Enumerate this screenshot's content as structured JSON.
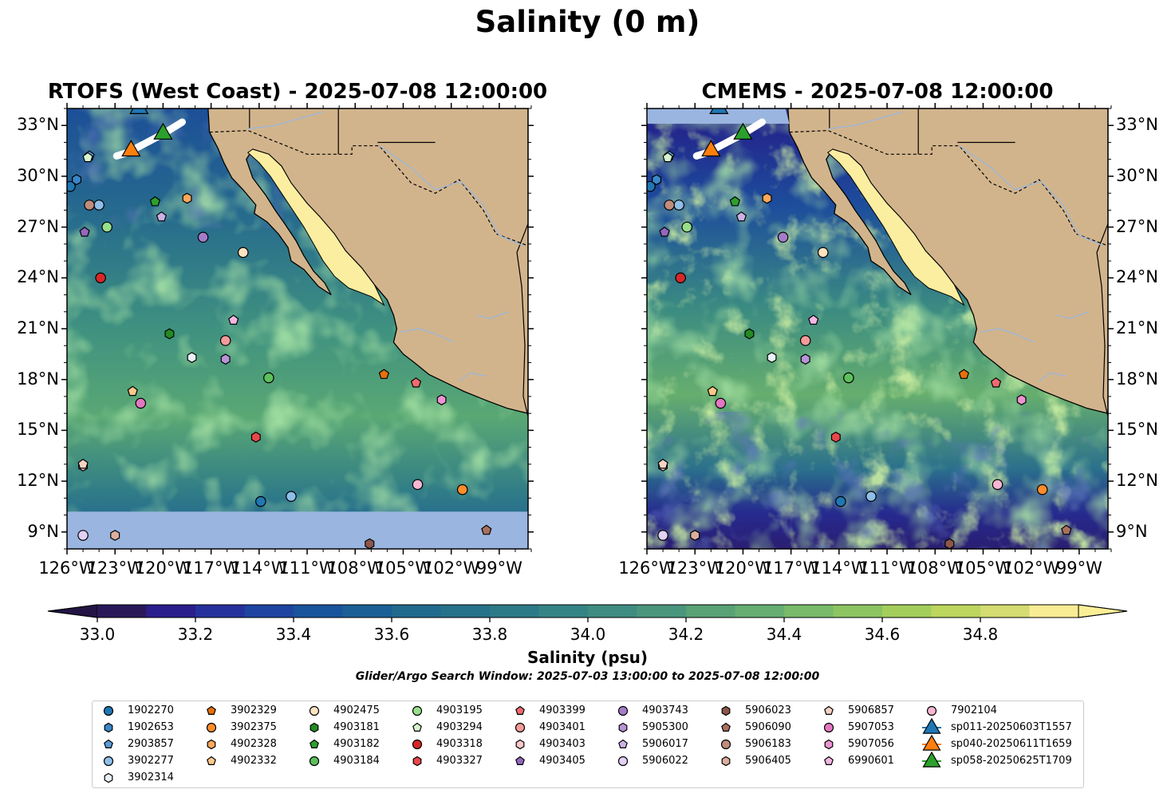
{
  "figure": {
    "title": "Salinity (0 m)"
  },
  "panels": [
    {
      "id": "rtofs",
      "title": "RTOFS (West Coast) - 2025-07-08 12:00:00"
    },
    {
      "id": "cmems",
      "title": "CMEMS - 2025-07-08 12:00:00"
    }
  ],
  "map_extent": {
    "lon_min": -126,
    "lon_max": -97.2,
    "lat_min": 8,
    "lat_max": 34
  },
  "axes": {
    "lat_ticks": [
      {
        "value": 33,
        "label": "33°N"
      },
      {
        "value": 30,
        "label": "30°N"
      },
      {
        "value": 27,
        "label": "27°N"
      },
      {
        "value": 24,
        "label": "24°N"
      },
      {
        "value": 21,
        "label": "21°N"
      },
      {
        "value": 18,
        "label": "18°N"
      },
      {
        "value": 15,
        "label": "15°N"
      },
      {
        "value": 12,
        "label": "12°N"
      },
      {
        "value": 9,
        "label": "9°N"
      }
    ],
    "lon_ticks": [
      {
        "value": -126,
        "label": "126°W"
      },
      {
        "value": -123,
        "label": "123°W"
      },
      {
        "value": -120,
        "label": "120°W"
      },
      {
        "value": -117,
        "label": "117°W"
      },
      {
        "value": -114,
        "label": "114°W"
      },
      {
        "value": -111,
        "label": "111°W"
      },
      {
        "value": -108,
        "label": "108°W"
      },
      {
        "value": -105,
        "label": "105°W"
      },
      {
        "value": -102,
        "label": "102°W"
      },
      {
        "value": -99,
        "label": "99°W"
      }
    ]
  },
  "colorbar": {
    "label": "Salinity (psu)",
    "min": 32.9,
    "max": 34.9,
    "step": 0.1,
    "ticks": [
      "33.0",
      "33.2",
      "33.4",
      "33.6",
      "33.8",
      "34.0",
      "34.2",
      "34.4",
      "34.6",
      "34.8"
    ],
    "colors": [
      "#2a1858",
      "#2a1e8c",
      "#26309c",
      "#1e44a0",
      "#18549c",
      "#1a6096",
      "#206a8e",
      "#26728a",
      "#2c7a88",
      "#348486",
      "#3e8c82",
      "#4a967c",
      "#58a276",
      "#66ae72",
      "#78ba6a",
      "#8cc462",
      "#a4ce5c",
      "#bcd65e",
      "#d4dc72",
      "#f8ec94"
    ],
    "under_color": "#231446",
    "over_color": "#fbef96"
  },
  "search_window": "Glider/Argo Search Window: 2025-07-03 13:00:00 to 2025-07-08 12:00:00",
  "land_color": "#d2b48c",
  "gulf_color": "#fbeea0",
  "nodata_color": "#9ab5e0",
  "platforms": [
    {
      "id": "1902270",
      "marker": "circle",
      "color": "#1f77b4"
    },
    {
      "id": "1902653",
      "marker": "hexagon",
      "color": "#3a86c8"
    },
    {
      "id": "2903857",
      "marker": "pentagon",
      "color": "#5b9bd5"
    },
    {
      "id": "3902277",
      "marker": "circle",
      "color": "#8fbfe8"
    },
    {
      "id": "3902314",
      "marker": "hexagon",
      "color": "#e8f2fb"
    },
    {
      "id": "3902329",
      "marker": "pentagon",
      "color": "#e6700a"
    },
    {
      "id": "3902375",
      "marker": "circle",
      "color": "#ff8c2a"
    },
    {
      "id": "4902328",
      "marker": "hexagon",
      "color": "#ffa85a"
    },
    {
      "id": "4902332",
      "marker": "pentagon",
      "color": "#ffc98a"
    },
    {
      "id": "4902475",
      "marker": "circle",
      "color": "#ffe3c0"
    },
    {
      "id": "4903181",
      "marker": "hexagon",
      "color": "#238b23"
    },
    {
      "id": "4903182",
      "marker": "pentagon",
      "color": "#2ca02c"
    },
    {
      "id": "4903184",
      "marker": "circle",
      "color": "#5cc05c"
    },
    {
      "id": "4903195",
      "marker": "circle",
      "color": "#98df8a"
    },
    {
      "id": "4903294",
      "marker": "pentagon",
      "color": "#d6f5cf"
    },
    {
      "id": "4903318",
      "marker": "circle",
      "color": "#d62728"
    },
    {
      "id": "4903327",
      "marker": "hexagon",
      "color": "#e8474a"
    },
    {
      "id": "4903399",
      "marker": "pentagon",
      "color": "#f06a70"
    },
    {
      "id": "4903401",
      "marker": "circle",
      "color": "#f59a9a"
    },
    {
      "id": "4903403",
      "marker": "hexagon",
      "color": "#fcc8c8"
    },
    {
      "id": "4903405",
      "marker": "pentagon",
      "color": "#9467bd"
    },
    {
      "id": "4903743",
      "marker": "circle",
      "color": "#a47cc9"
    },
    {
      "id": "5905300",
      "marker": "hexagon",
      "color": "#b694d6"
    },
    {
      "id": "5906017",
      "marker": "pentagon",
      "color": "#cbb2e6"
    },
    {
      "id": "5906022",
      "marker": "circle",
      "color": "#e2d0f5"
    },
    {
      "id": "5906023",
      "marker": "hexagon",
      "color": "#8c564b"
    },
    {
      "id": "5906090",
      "marker": "pentagon",
      "color": "#a8705f"
    },
    {
      "id": "5906183",
      "marker": "circle",
      "color": "#c08c7c"
    },
    {
      "id": "5906405",
      "marker": "hexagon",
      "color": "#dcae9e"
    },
    {
      "id": "5906857",
      "marker": "pentagon",
      "color": "#f5d3c4"
    },
    {
      "id": "5907053",
      "marker": "circle",
      "color": "#e377c2"
    },
    {
      "id": "5907056",
      "marker": "hexagon",
      "color": "#ec94d2"
    },
    {
      "id": "6990601",
      "marker": "pentagon",
      "color": "#f4b6e2"
    },
    {
      "id": "7902104",
      "marker": "circle",
      "color": "#f7b6d2"
    },
    {
      "id": "sp011-20250603T1557",
      "marker": "triangle",
      "color": "#1f77b4"
    },
    {
      "id": "sp040-20250611T1659",
      "marker": "triangle",
      "color": "#ff7f0e"
    },
    {
      "id": "sp058-20250625T1709",
      "marker": "triangle",
      "color": "#2ca02c"
    }
  ],
  "observations": [
    {
      "platform": "1902270",
      "lon": -125.8,
      "lat": 29.4
    },
    {
      "platform": "1902653",
      "lon": -125.4,
      "lat": 29.8
    },
    {
      "platform": "2903857",
      "lon": -124.6,
      "lat": 31.2
    },
    {
      "platform": "3902277",
      "lon": -124.0,
      "lat": 28.3
    },
    {
      "platform": "3902314",
      "lon": -118.2,
      "lat": 19.3
    },
    {
      "platform": "3902329",
      "lon": -106.2,
      "lat": 18.3
    },
    {
      "platform": "3902375",
      "lon": -101.3,
      "lat": 11.5
    },
    {
      "platform": "4902328",
      "lon": -118.5,
      "lat": 28.7
    },
    {
      "platform": "4902332",
      "lon": -121.9,
      "lat": 17.3
    },
    {
      "platform": "4902475",
      "lon": -115.0,
      "lat": 25.5
    },
    {
      "platform": "4903181",
      "lon": -119.6,
      "lat": 20.7
    },
    {
      "platform": "4903182",
      "lon": -120.5,
      "lat": 28.5
    },
    {
      "platform": "4903184",
      "lon": -113.4,
      "lat": 18.1
    },
    {
      "platform": "4903195",
      "lon": -123.5,
      "lat": 27.0
    },
    {
      "platform": "4903294",
      "lon": -124.7,
      "lat": 31.1
    },
    {
      "platform": "4903318",
      "lon": -123.9,
      "lat": 24.0
    },
    {
      "platform": "4903327",
      "lon": -114.2,
      "lat": 14.6
    },
    {
      "platform": "4903399",
      "lon": -104.2,
      "lat": 17.8
    },
    {
      "platform": "4903401",
      "lon": -116.1,
      "lat": 20.3
    },
    {
      "platform": "4903403",
      "lon": -125.0,
      "lat": 12.9
    },
    {
      "platform": "4903405",
      "lon": -124.9,
      "lat": 26.7
    },
    {
      "platform": "4903743",
      "lon": -117.5,
      "lat": 26.4
    },
    {
      "platform": "5905300",
      "lon": -116.1,
      "lat": 19.2
    },
    {
      "platform": "5906017",
      "lon": -120.1,
      "lat": 27.6
    },
    {
      "platform": "5906022",
      "lon": -125.0,
      "lat": 8.8
    },
    {
      "platform": "5906023",
      "lon": -107.1,
      "lat": 8.3
    },
    {
      "platform": "5906090",
      "lon": -99.8,
      "lat": 9.1
    },
    {
      "platform": "5906183",
      "lon": -124.6,
      "lat": 28.3
    },
    {
      "platform": "5906405",
      "lon": -123.0,
      "lat": 8.8
    },
    {
      "platform": "5906857",
      "lon": -125.0,
      "lat": 13.0
    },
    {
      "platform": "5907053",
      "lon": -121.4,
      "lat": 16.6
    },
    {
      "platform": "5907056",
      "lon": -102.6,
      "lat": 16.8
    },
    {
      "platform": "6990601",
      "lon": -115.6,
      "lat": 21.5
    },
    {
      "platform": "7902104",
      "lon": -104.1,
      "lat": 11.8
    },
    {
      "platform": "1902270",
      "lon": -113.9,
      "lat": 10.8
    },
    {
      "platform": "3902277",
      "lon": -112.0,
      "lat": 11.1
    },
    {
      "platform": "sp011-20250603T1557",
      "lon": -121.5,
      "lat": 34.0
    },
    {
      "platform": "sp040-20250611T1659",
      "lon": -122.0,
      "lat": 31.5
    },
    {
      "platform": "sp058-20250625T1709",
      "lon": -120.0,
      "lat": 32.5
    }
  ]
}
